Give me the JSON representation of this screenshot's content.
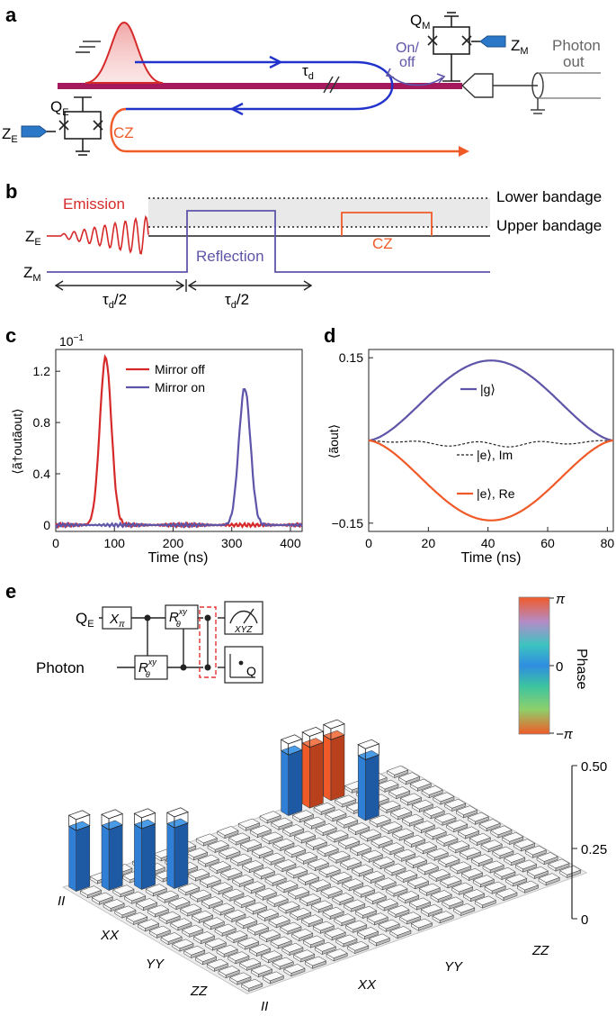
{
  "panels": {
    "a": "a",
    "b": "b",
    "c": "c",
    "d": "d",
    "e": "e"
  },
  "panel_a": {
    "tau_d": "τ",
    "tau_sub": "d",
    "on_off_1": "On/",
    "on_off_2": "off",
    "qm": "Q",
    "qm_sub": "M",
    "zm": "Z",
    "zm_sub": "M",
    "qe": "Q",
    "qe_sub": "E",
    "ze": "Z",
    "ze_sub": "E",
    "cz": "CZ",
    "photon_out_1": "Photon",
    "photon_out_2": "out"
  },
  "panel_b": {
    "emission": "Emission",
    "reflection": "Reflection",
    "cz": "CZ",
    "lower_bandage": "Lower bandage",
    "upper_bandage": "Upper bandage",
    "ze": "Z",
    "ze_sub": "E",
    "zm": "Z",
    "zm_sub": "M",
    "tau_half_1": "τ",
    "tau_half_2": "τ",
    "tau_sub": "d",
    "tau_div": "/2"
  },
  "panel_e": {
    "qe": "Q",
    "qe_sub": "E",
    "photon": "Photon",
    "xpi": "X",
    "xpi_sub": "π",
    "r": "R",
    "r_sup": "xy",
    "r_sub": "θ",
    "xyz": "XYZ",
    "q": "Q",
    "phase_label": "Phase",
    "phase_ticks": [
      "π",
      "0",
      "−π"
    ],
    "z_ticks": [
      "0.50",
      "0.25",
      "0"
    ],
    "x_axis_labels": [
      "II",
      "XX",
      "YY",
      "ZZ"
    ],
    "y_axis_labels": [
      "II",
      "XX",
      "YY",
      "ZZ"
    ]
  },
  "chart_data": [
    {
      "type": "line",
      "panel": "c",
      "title": "",
      "xlabel": "Time (ns)",
      "ylabel": "⟨ã†outãout⟩",
      "multiplier": "10",
      "multiplier_exp": "−1",
      "xlim": [
        0,
        420
      ],
      "ylim": [
        -0.05,
        1.37
      ],
      "x_ticks": [
        "0",
        "100",
        "200",
        "300",
        "400"
      ],
      "y_ticks": [
        "0",
        "0.4",
        "0.8",
        "1.2"
      ],
      "legend": "top-right",
      "colors": {
        "mirror_off": "#d62a2a",
        "mirror_on": "#5e55a8"
      },
      "series": [
        {
          "name": "Mirror off",
          "peak_x": 85,
          "peak_y": 1.31,
          "width": 14
        },
        {
          "name": "Mirror on",
          "peak_x": 322,
          "peak_y": 1.07,
          "width": 14
        }
      ]
    },
    {
      "type": "line",
      "panel": "d",
      "title": "",
      "xlabel": "Time (ns)",
      "ylabel": "⟨ãout⟩",
      "xlim": [
        0,
        82
      ],
      "ylim": [
        -0.165,
        0.165
      ],
      "x_ticks": [
        "0",
        "20",
        "40",
        "60",
        "80"
      ],
      "y_ticks": [
        "0.15",
        "−0.15"
      ],
      "colors": {
        "g": "#5e55a8",
        "e_re": "#f05a28",
        "e_im": "#222222"
      },
      "series": [
        {
          "name": "|g⟩",
          "amplitude": 0.145
        },
        {
          "name": "|e⟩, Im",
          "amplitude": 0.012
        },
        {
          "name": "|e⟩, Re",
          "amplitude": -0.145
        }
      ]
    },
    {
      "type": "bar3d",
      "panel": "e",
      "title": "",
      "zlim": [
        0,
        0.5
      ],
      "colorbar": {
        "min": "−π",
        "max": "π",
        "colors": [
          "#f05a28",
          "#3cc47a",
          "#3a8fd6",
          "#f05a28"
        ]
      },
      "bars": [
        {
          "row": 0,
          "col": 0,
          "value": 0.25,
          "phase": "blue"
        },
        {
          "row": 1,
          "col": 1,
          "value": 0.25,
          "phase": "blue"
        },
        {
          "row": 2,
          "col": 2,
          "value": 0.25,
          "phase": "blue"
        },
        {
          "row": 3,
          "col": 3,
          "value": 0.25,
          "phase": "blue"
        },
        {
          "row": 0,
          "col": 10,
          "value": 0.25,
          "phase": "blue"
        },
        {
          "row": 0,
          "col": 11,
          "value": 0.25,
          "phase": "orange"
        },
        {
          "row": 0,
          "col": 12,
          "value": 0.25,
          "phase": "orange"
        },
        {
          "row": 3,
          "col": 12,
          "value": 0.25,
          "phase": "blue"
        }
      ]
    }
  ]
}
